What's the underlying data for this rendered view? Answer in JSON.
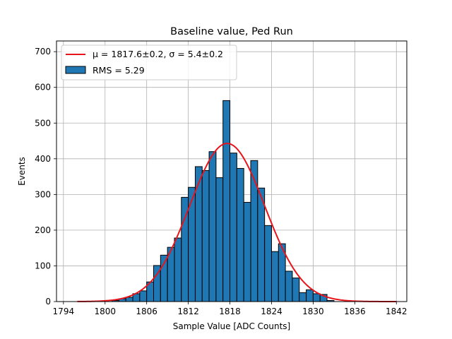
{
  "chart_data": {
    "type": "bar",
    "title": "Baseline value, Ped Run",
    "xlabel": "Sample Value [ADC Counts]",
    "ylabel": "Events",
    "xlim": [
      1793,
      1843.5
    ],
    "ylim": [
      0,
      730
    ],
    "xticks": [
      1794,
      1800,
      1806,
      1812,
      1818,
      1824,
      1830,
      1836,
      1842
    ],
    "yticks": [
      0,
      100,
      200,
      300,
      400,
      500,
      600,
      700
    ],
    "grid": true,
    "legend_position": "top-left",
    "bin_width": 1,
    "bins": [
      {
        "x": 1801.5,
        "count": 3
      },
      {
        "x": 1802.5,
        "count": 8
      },
      {
        "x": 1803.5,
        "count": 12
      },
      {
        "x": 1804.5,
        "count": 22
      },
      {
        "x": 1805.5,
        "count": 30
      },
      {
        "x": 1806.5,
        "count": 55
      },
      {
        "x": 1807.5,
        "count": 101
      },
      {
        "x": 1808.5,
        "count": 130
      },
      {
        "x": 1809.5,
        "count": 152
      },
      {
        "x": 1810.5,
        "count": 178
      },
      {
        "x": 1811.5,
        "count": 292
      },
      {
        "x": 1812.5,
        "count": 320
      },
      {
        "x": 1813.5,
        "count": 378
      },
      {
        "x": 1814.5,
        "count": 367
      },
      {
        "x": 1815.5,
        "count": 420
      },
      {
        "x": 1816.5,
        "count": 347
      },
      {
        "x": 1817.5,
        "count": 563
      },
      {
        "x": 1818.5,
        "count": 416
      },
      {
        "x": 1819.5,
        "count": 373
      },
      {
        "x": 1820.5,
        "count": 278
      },
      {
        "x": 1821.5,
        "count": 395
      },
      {
        "x": 1822.5,
        "count": 318
      },
      {
        "x": 1823.5,
        "count": 213
      },
      {
        "x": 1824.5,
        "count": 140
      },
      {
        "x": 1825.5,
        "count": 162
      },
      {
        "x": 1826.5,
        "count": 85
      },
      {
        "x": 1827.5,
        "count": 66
      },
      {
        "x": 1828.5,
        "count": 25
      },
      {
        "x": 1829.5,
        "count": 33
      },
      {
        "x": 1830.5,
        "count": 22
      },
      {
        "x": 1831.5,
        "count": 20
      },
      {
        "x": 1832.5,
        "count": 3
      }
    ],
    "fit": {
      "mu": 1817.6,
      "sigma": 5.4,
      "amplitude": 443,
      "x_range": [
        1796,
        1842
      ]
    },
    "legend": {
      "fit_label": "μ = 1817.6±0.2, σ = 5.4±0.2",
      "hist_label": "RMS = 5.29"
    },
    "colors": {
      "bar_fill": "#1f77b4",
      "bar_edge": "#000000",
      "fit_line": "#e8141b",
      "grid": "#b0b0b0"
    }
  }
}
